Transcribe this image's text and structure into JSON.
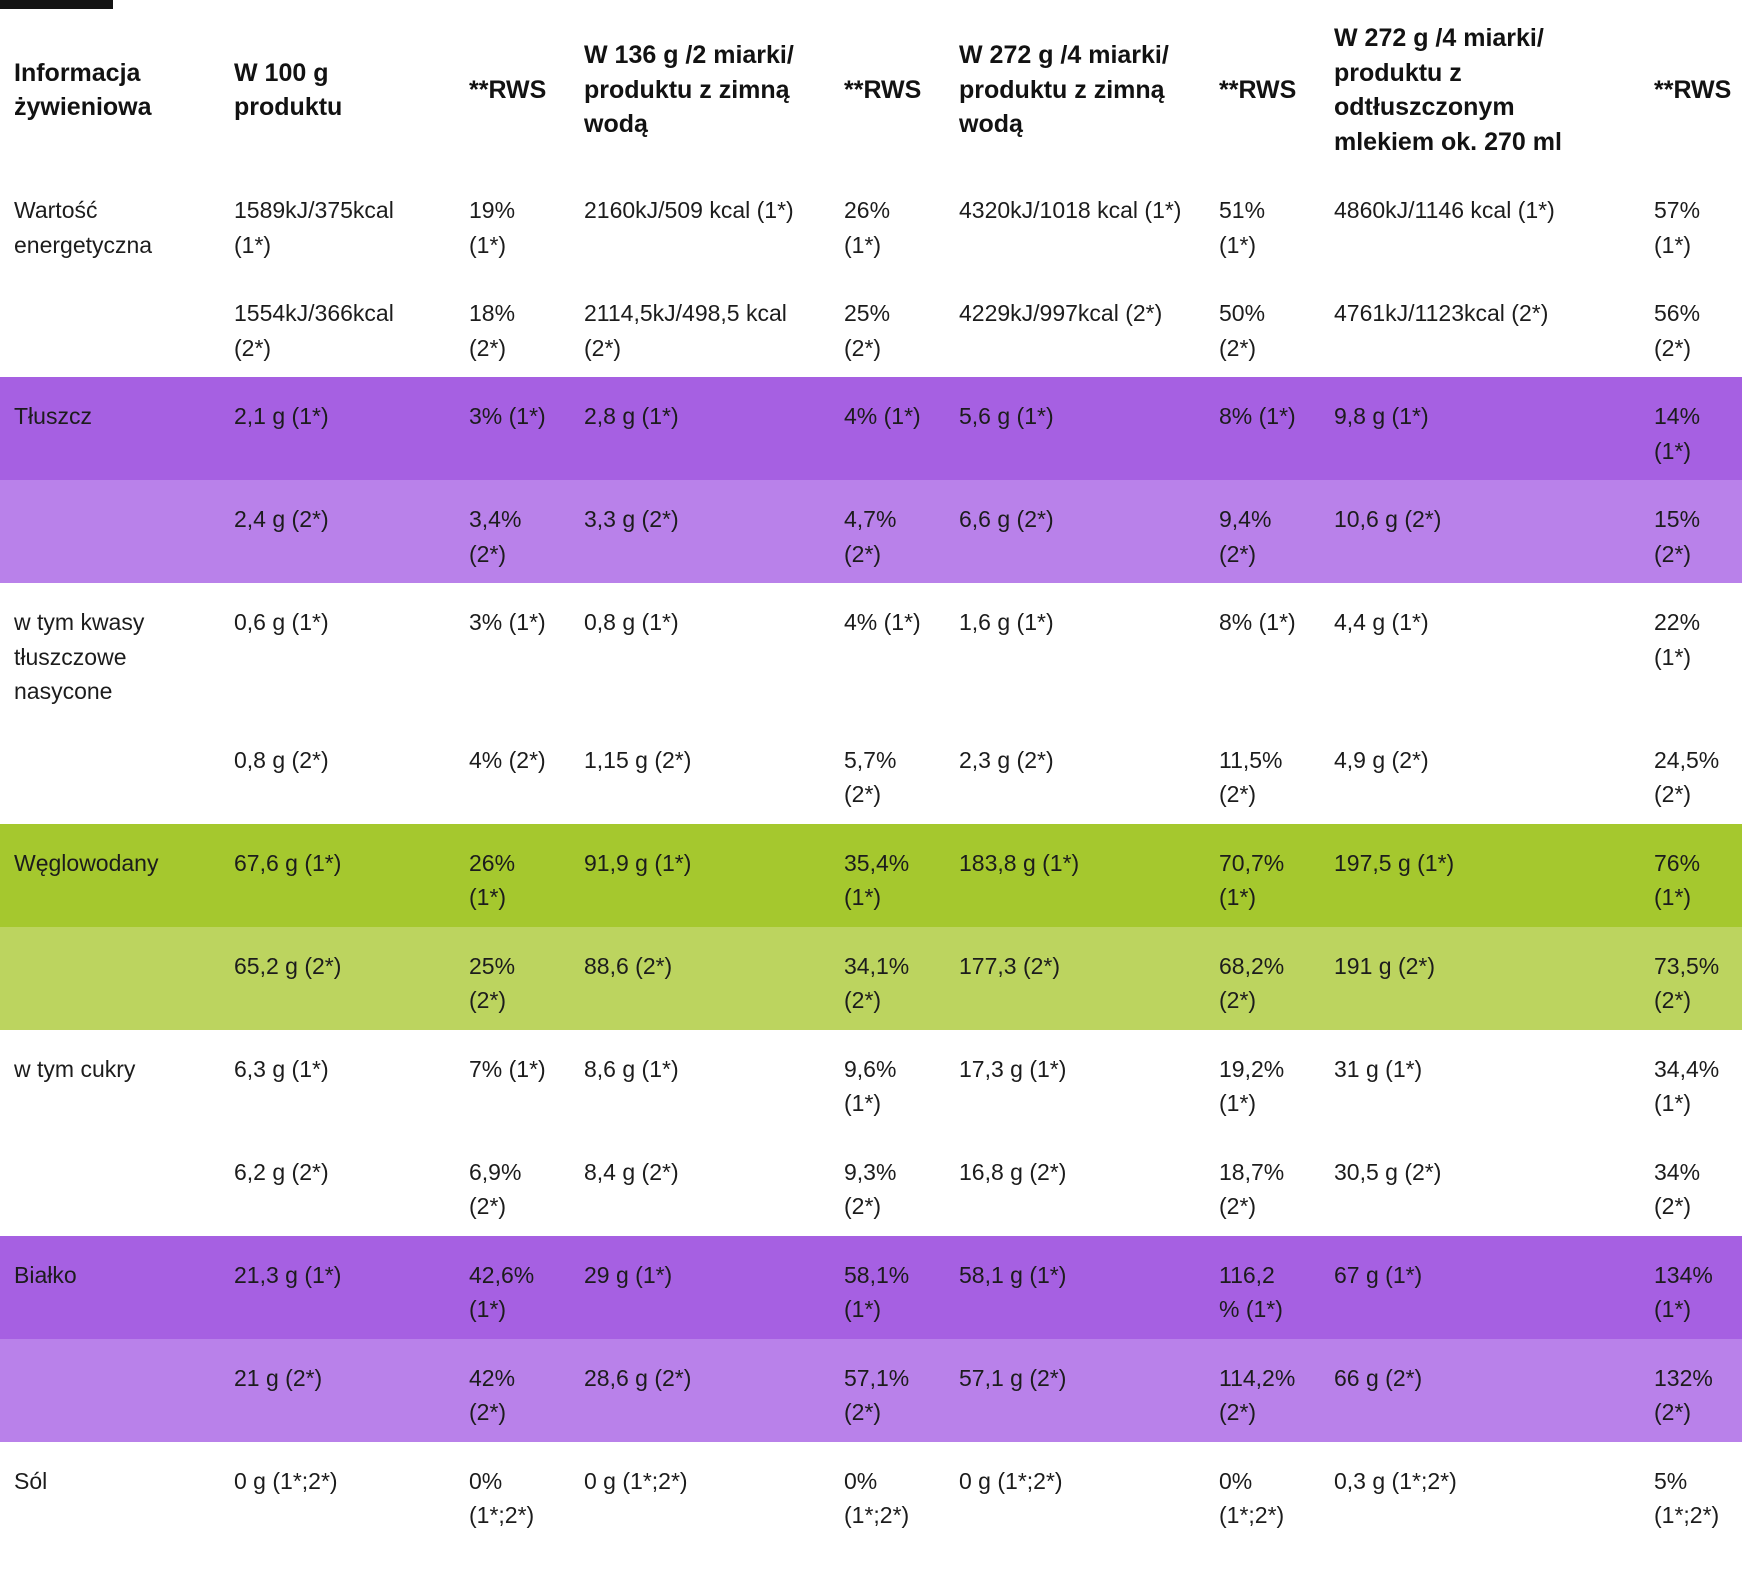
{
  "colors": {
    "purple_dark": "#a660e2",
    "purple_light": "#b981ea",
    "green_dark": "#a5c82e",
    "green_light": "#bcd45f",
    "text": "#1c1c1c",
    "background": "#ffffff"
  },
  "table": {
    "headers": [
      "Informacja żywieniowa",
      "W 100 g produktu",
      "**RWS",
      "W 136 g /2 miarki/ produktu z zimną wodą",
      "**RWS",
      "W 272 g /4 miarki/ produktu z zimną wodą",
      "**RWS",
      "W 272 g /4 miarki/ produktu z odtłuszczonym mlekiem ok. 270 ml",
      "**RWS"
    ],
    "rows": [
      {
        "style": "white",
        "cells": [
          "Wartość energetyczna",
          "1589kJ/375kcal (1*)",
          "19% (1*)",
          "2160kJ/509 kcal (1*)",
          "26% (1*)",
          "4320kJ/1018 kcal (1*)",
          "51% (1*)",
          "4860kJ/1146 kcal (1*)",
          "57% (1*)"
        ]
      },
      {
        "style": "white",
        "cells": [
          "",
          "1554kJ/366kcal (2*)",
          "18% (2*)",
          "2114,5kJ/498,5 kcal (2*)",
          "25% (2*)",
          "4229kJ/997kcal (2*)",
          "50% (2*)",
          "4761kJ/1123kcal (2*)",
          "56% (2*)"
        ]
      },
      {
        "style": "purple-dark",
        "cells": [
          "Tłuszcz",
          "2,1 g (1*)",
          "3% (1*)",
          "2,8 g (1*)",
          "4% (1*)",
          "5,6 g (1*)",
          "8% (1*)",
          "9,8 g (1*)",
          "14% (1*)"
        ]
      },
      {
        "style": "purple-light",
        "cells": [
          "",
          "2,4 g (2*)",
          "3,4% (2*)",
          "3,3 g (2*)",
          "4,7% (2*)",
          "6,6 g (2*)",
          "9,4% (2*)",
          "10,6 g (2*)",
          "15% (2*)"
        ]
      },
      {
        "style": "white",
        "cells": [
          "w tym kwasy tłuszczowe nasycone",
          "0,6 g (1*)",
          "3% (1*)",
          "0,8 g (1*)",
          "4% (1*)",
          "1,6 g (1*)",
          "8% (1*)",
          "4,4 g (1*)",
          "22% (1*)"
        ]
      },
      {
        "style": "white",
        "cells": [
          "",
          "0,8 g (2*)",
          "4% (2*)",
          "1,15 g (2*)",
          "5,7% (2*)",
          "2,3 g (2*)",
          "11,5% (2*)",
          "4,9 g (2*)",
          "24,5% (2*)"
        ]
      },
      {
        "style": "green-dark",
        "cells": [
          "Węglowodany",
          "67,6 g (1*)",
          "26% (1*)",
          "91,9 g (1*)",
          "35,4% (1*)",
          "183,8 g (1*)",
          "70,7% (1*)",
          "197,5 g (1*)",
          "76% (1*)"
        ]
      },
      {
        "style": "green-light",
        "cells": [
          "",
          "65,2 g (2*)",
          "25% (2*)",
          "88,6 (2*)",
          "34,1% (2*)",
          "177,3 (2*)",
          "68,2% (2*)",
          "191 g (2*)",
          "73,5% (2*)"
        ]
      },
      {
        "style": "white",
        "cells": [
          "w tym cukry",
          "6,3 g (1*)",
          "7% (1*)",
          "8,6 g (1*)",
          "9,6% (1*)",
          "17,3 g (1*)",
          "19,2% (1*)",
          "31 g (1*)",
          "34,4% (1*)"
        ]
      },
      {
        "style": "white",
        "cells": [
          "",
          "6,2 g (2*)",
          "6,9% (2*)",
          "8,4 g (2*)",
          "9,3% (2*)",
          "16,8 g (2*)",
          "18,7% (2*)",
          "30,5 g (2*)",
          "34% (2*)"
        ]
      },
      {
        "style": "purple-dark",
        "cells": [
          "Białko",
          "21,3 g (1*)",
          "42,6% (1*)",
          "29 g (1*)",
          "58,1% (1*)",
          "58,1 g (1*)",
          "116,2 % (1*)",
          "67 g (1*)",
          "134% (1*)"
        ]
      },
      {
        "style": "purple-light",
        "cells": [
          "",
          "21 g (2*)",
          "42% (2*)",
          "28,6 g (2*)",
          "57,1% (2*)",
          "57,1 g (2*)",
          "114,2% (2*)",
          "66 g (2*)",
          "132% (2*)"
        ]
      },
      {
        "style": "white",
        "cells": [
          "Sól",
          "0 g (1*;2*)",
          "0% (1*;2*)",
          "0 g (1*;2*)",
          "0% (1*;2*)",
          "0 g (1*;2*)",
          "0% (1*;2*)",
          "0,3 g (1*;2*)",
          "5% (1*;2*)"
        ]
      }
    ]
  }
}
